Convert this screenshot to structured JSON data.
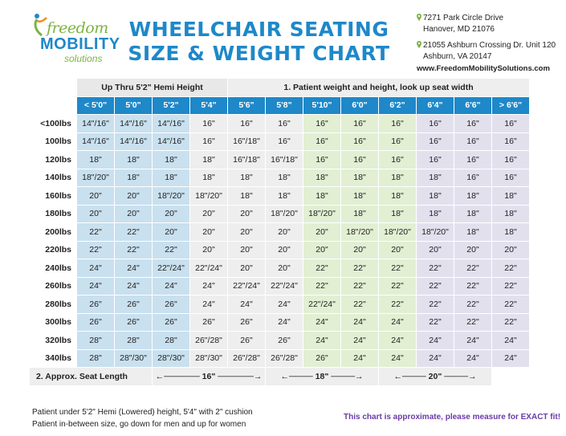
{
  "header": {
    "logo": {
      "line1": "freedom",
      "line2": "MOBILITY",
      "line3": "solutions"
    },
    "title_line1": "WHEELCHAIR SEATING",
    "title_line2": "SIZE & WEIGHT CHART",
    "address1_line1": "7271 Park Circle Drive",
    "address1_line2": "Hanover, MD 21076",
    "address2_line1": "21055 Ashburn Crossing Dr. Unit 120",
    "address2_line2": "Ashburn, VA 20147",
    "website": "www.FreedomMobilitySolutions.com"
  },
  "colors": {
    "accent_blue": "#1e88c9",
    "accent_orange": "#f28c1e",
    "accent_green": "#7cb342",
    "accent_purple": "#6a3aa8"
  },
  "table": {
    "group_left": "Up Thru 5'2\" Hemi Height",
    "group_right": "1. Patient weight and height, look up seat width",
    "heights": [
      "< 5'0\"",
      "5'0\"",
      "5'2\"",
      "5'4\"",
      "5'6\"",
      "5'8\"",
      "5'10\"",
      "6'0\"",
      "6'2\"",
      "6'4\"",
      "6'6\"",
      "> 6'6\""
    ],
    "rows": [
      {
        "weight": "<100lbs",
        "cells": [
          "14\"/16\"",
          "14\"/16\"",
          "14\"/16\"",
          "16\"",
          "16\"",
          "16\"",
          "16\"",
          "16\"",
          "16\"",
          "16\"",
          "16\"",
          "16\""
        ]
      },
      {
        "weight": "100lbs",
        "cells": [
          "14\"/16\"",
          "14\"/16\"",
          "14\"/16\"",
          "16\"",
          "16\"/18\"",
          "16\"",
          "16\"",
          "16\"",
          "16\"",
          "16\"",
          "16\"",
          "16\""
        ]
      },
      {
        "weight": "120lbs",
        "cells": [
          "18\"",
          "18\"",
          "18\"",
          "18\"",
          "16\"/18\"",
          "16\"/18\"",
          "16\"",
          "16\"",
          "16\"",
          "16\"",
          "16\"",
          "16\""
        ]
      },
      {
        "weight": "140lbs",
        "cells": [
          "18\"/20\"",
          "18\"",
          "18\"",
          "18\"",
          "18\"",
          "18\"",
          "18\"",
          "18\"",
          "18\"",
          "18\"",
          "16\"",
          "16\""
        ]
      },
      {
        "weight": "160lbs",
        "cells": [
          "20\"",
          "20\"",
          "18\"/20\"",
          "18\"/20\"",
          "18\"",
          "18\"",
          "18\"",
          "18\"",
          "18\"",
          "18\"",
          "18\"",
          "18\""
        ]
      },
      {
        "weight": "180lbs",
        "cells": [
          "20\"",
          "20\"",
          "20\"",
          "20\"",
          "20\"",
          "18\"/20\"",
          "18\"/20\"",
          "18\"",
          "18\"",
          "18\"",
          "18\"",
          "18\""
        ]
      },
      {
        "weight": "200lbs",
        "cells": [
          "22\"",
          "22\"",
          "20\"",
          "20\"",
          "20\"",
          "20\"",
          "20\"",
          "18\"/20\"",
          "18\"/20\"",
          "18\"/20\"",
          "18\"",
          "18\""
        ]
      },
      {
        "weight": "220lbs",
        "cells": [
          "22\"",
          "22\"",
          "22\"",
          "20\"",
          "20\"",
          "20\"",
          "20\"",
          "20\"",
          "20\"",
          "20\"",
          "20\"",
          "20\""
        ]
      },
      {
        "weight": "240lbs",
        "cells": [
          "24\"",
          "24\"",
          "22\"/24\"",
          "22\"/24\"",
          "20\"",
          "20\"",
          "22\"",
          "22\"",
          "22\"",
          "22\"",
          "22\"",
          "22\""
        ]
      },
      {
        "weight": "260lbs",
        "cells": [
          "24\"",
          "24\"",
          "24\"",
          "24\"",
          "22\"/24\"",
          "22\"/24\"",
          "22\"",
          "22\"",
          "22\"",
          "22\"",
          "22\"",
          "22\""
        ]
      },
      {
        "weight": "280lbs",
        "cells": [
          "26\"",
          "26\"",
          "26\"",
          "24\"",
          "24\"",
          "24\"",
          "22\"/24\"",
          "22\"",
          "22\"",
          "22\"",
          "22\"",
          "22\""
        ]
      },
      {
        "weight": "300lbs",
        "cells": [
          "26\"",
          "26\"",
          "26\"",
          "26\"",
          "26\"",
          "24\"",
          "24\"",
          "24\"",
          "24\"",
          "22\"",
          "22\"",
          "22\""
        ]
      },
      {
        "weight": "320lbs",
        "cells": [
          "28\"",
          "28\"",
          "28\"",
          "26\"/28\"",
          "26\"",
          "26\"",
          "24\"",
          "24\"",
          "24\"",
          "24\"",
          "24\"",
          "24\""
        ]
      },
      {
        "weight": "340lbs",
        "cells": [
          "28\"",
          "28\"/30\"",
          "28\"/30\"",
          "28\"/30\"",
          "26\"/28\"",
          "26\"/28\"",
          "26\"",
          "24\"",
          "24\"",
          "24\"",
          "24\"",
          "24\""
        ]
      }
    ],
    "seat_length_label": "2. Approx. Seat Length",
    "seat_length_16": "16\"",
    "seat_length_18": "18\"",
    "seat_length_20": "20\""
  },
  "footer": {
    "note1": "Patient under 5'2\" Hemi (Lowered) height, 5'4\" with 2\" cushion",
    "note2": "Patient in-between size, go down for men and up for women",
    "disclaimer": "This chart is approximate, please measure for EXACT fit!"
  }
}
